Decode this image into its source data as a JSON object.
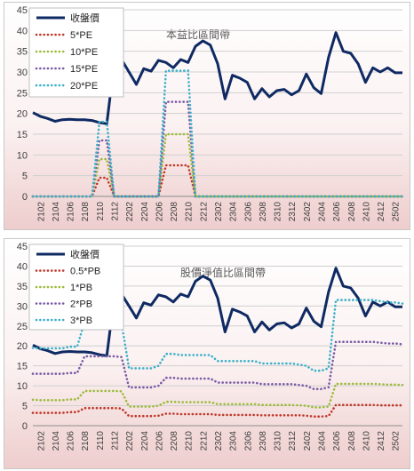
{
  "chart_data": [
    {
      "type": "line",
      "title": "本益比區間帶",
      "xlabel": "",
      "ylabel": "",
      "ylim": [
        0,
        45
      ],
      "yticks": [
        0,
        5,
        10,
        15,
        20,
        25,
        30,
        35,
        40,
        45
      ],
      "grid": true,
      "legend": "top-left",
      "x": [
        "2101",
        "2102",
        "2103",
        "2104",
        "2105",
        "2106",
        "2107",
        "2108",
        "2109",
        "2110",
        "2111",
        "2112",
        "2201",
        "2202",
        "2203",
        "2204",
        "2205",
        "2206",
        "2207",
        "2208",
        "2209",
        "2210",
        "2211",
        "2212",
        "2301",
        "2302",
        "2303",
        "2304",
        "2305",
        "2306",
        "2307",
        "2308",
        "2309",
        "2310",
        "2311",
        "2312",
        "2401",
        "2402",
        "2403",
        "2404",
        "2405",
        "2406",
        "2407",
        "2408",
        "2409",
        "2410",
        "2411",
        "2412",
        "2501",
        "2502",
        "2503"
      ],
      "x_tick_labels": [
        "2102",
        "2104",
        "2106",
        "2108",
        "2110",
        "2112",
        "2202",
        "2204",
        "2206",
        "2208",
        "2210",
        "2212",
        "2302",
        "2304",
        "2306",
        "2308",
        "2310",
        "2312",
        "2402",
        "2404",
        "2406",
        "2408",
        "2410",
        "2412",
        "2502"
      ],
      "series": [
        {
          "name": "收盤價",
          "color": "#0f2a63",
          "style": "solid",
          "values": [
            20.2,
            19.3,
            18.8,
            18.1,
            18.5,
            18.6,
            18.5,
            18.5,
            18.3,
            17.8,
            17.5,
            32.0,
            33.0,
            30.0,
            27.0,
            30.8,
            30.2,
            32.8,
            32.3,
            31.0,
            33.0,
            32.3,
            36.2,
            37.5,
            36.5,
            32.0,
            23.5,
            29.2,
            28.5,
            27.5,
            23.5,
            26.0,
            24.0,
            25.5,
            25.8,
            24.5,
            25.5,
            29.5,
            26.2,
            24.8,
            33.5,
            39.5,
            35.0,
            34.5,
            32.0,
            27.5,
            31.0,
            30.0,
            31.0,
            29.8,
            29.8
          ]
        },
        {
          "name": "5*PE",
          "color": "#c0392b",
          "style": "dotted",
          "values": [
            0,
            0,
            0,
            0,
            0,
            0,
            0,
            0,
            0,
            4.5,
            4.5,
            0,
            0,
            0,
            0,
            0,
            0,
            0,
            7.5,
            7.5,
            7.5,
            7.5,
            0,
            0,
            0,
            0,
            0,
            0,
            0,
            0,
            0,
            0,
            0,
            0,
            0,
            0,
            0,
            0,
            0,
            0,
            0,
            0,
            0,
            0,
            0,
            0,
            0,
            0,
            0,
            0,
            0
          ]
        },
        {
          "name": "10*PE",
          "color": "#9bbb3b",
          "style": "dotted",
          "values": [
            0,
            0,
            0,
            0,
            0,
            0,
            0,
            0,
            0,
            9.0,
            9.0,
            0,
            0,
            0,
            0,
            0,
            0,
            0,
            15.0,
            15.0,
            15.0,
            15.0,
            0,
            0,
            0,
            0,
            0,
            0,
            0,
            0,
            0,
            0,
            0,
            0,
            0,
            0,
            0,
            0,
            0,
            0,
            0,
            0,
            0,
            0,
            0,
            0,
            0,
            0,
            0,
            0,
            0
          ]
        },
        {
          "name": "15*PE",
          "color": "#7a5aa6",
          "style": "dotted",
          "values": [
            0,
            0,
            0,
            0,
            0,
            0,
            0,
            0,
            0,
            13.5,
            13.5,
            0,
            0,
            0,
            0,
            0,
            0,
            0,
            22.8,
            22.8,
            22.8,
            22.8,
            0,
            0,
            0,
            0,
            0,
            0,
            0,
            0,
            0,
            0,
            0,
            0,
            0,
            0,
            0,
            0,
            0,
            0,
            0,
            0,
            0,
            0,
            0,
            0,
            0,
            0,
            0,
            0,
            0
          ]
        },
        {
          "name": "20*PE",
          "color": "#3bb0c9",
          "style": "dotted",
          "values": [
            0,
            0,
            0,
            0,
            0,
            0,
            0,
            0,
            0,
            18.0,
            18.0,
            0,
            0,
            0,
            0,
            0,
            0,
            0,
            30.3,
            30.3,
            30.3,
            30.3,
            0,
            0,
            0,
            0,
            0,
            0,
            0,
            0,
            0,
            0,
            0,
            0,
            0,
            0,
            0,
            0,
            0,
            0,
            0,
            0,
            0,
            0,
            0,
            0,
            0,
            0,
            0,
            0,
            0
          ]
        }
      ]
    },
    {
      "type": "line",
      "title": "股價淨值比區間帶",
      "xlabel": "",
      "ylabel": "",
      "ylim": [
        0,
        45
      ],
      "yticks": [
        0,
        5,
        10,
        15,
        20,
        25,
        30,
        35,
        40,
        45
      ],
      "grid": true,
      "legend": "top-left",
      "x": [
        "2101",
        "2102",
        "2103",
        "2104",
        "2105",
        "2106",
        "2107",
        "2108",
        "2109",
        "2110",
        "2111",
        "2112",
        "2201",
        "2202",
        "2203",
        "2204",
        "2205",
        "2206",
        "2207",
        "2208",
        "2209",
        "2210",
        "2211",
        "2212",
        "2301",
        "2302",
        "2303",
        "2304",
        "2305",
        "2306",
        "2307",
        "2308",
        "2309",
        "2310",
        "2311",
        "2312",
        "2401",
        "2402",
        "2403",
        "2404",
        "2405",
        "2406",
        "2407",
        "2408",
        "2409",
        "2410",
        "2411",
        "2412",
        "2501",
        "2502",
        "2503"
      ],
      "x_tick_labels": [
        "2102",
        "2104",
        "2106",
        "2108",
        "2110",
        "2112",
        "2202",
        "2204",
        "2206",
        "2208",
        "2210",
        "2212",
        "2302",
        "2304",
        "2306",
        "2308",
        "2310",
        "2312",
        "2402",
        "2404",
        "2406",
        "2408",
        "2410",
        "2412",
        "2502"
      ],
      "series": [
        {
          "name": "收盤價",
          "color": "#0f2a63",
          "style": "solid",
          "values": [
            20.2,
            19.3,
            18.8,
            18.1,
            18.5,
            18.6,
            18.5,
            18.5,
            18.3,
            17.8,
            17.5,
            32.0,
            33.0,
            30.0,
            27.0,
            30.8,
            30.2,
            32.8,
            32.3,
            31.0,
            33.0,
            32.3,
            36.2,
            37.5,
            36.5,
            32.0,
            23.5,
            29.2,
            28.5,
            27.5,
            23.5,
            26.0,
            24.0,
            25.5,
            25.8,
            24.5,
            25.5,
            29.5,
            26.2,
            24.8,
            33.5,
            39.5,
            35.0,
            34.5,
            32.0,
            27.5,
            31.0,
            30.0,
            31.0,
            29.8,
            29.8
          ]
        },
        {
          "name": "0.5*PB",
          "color": "#c0392b",
          "style": "dotted",
          "values": [
            3.2,
            3.2,
            3.2,
            3.2,
            3.2,
            3.4,
            3.4,
            4.4,
            4.4,
            4.4,
            4.4,
            4.4,
            4.3,
            2.4,
            2.4,
            2.4,
            2.4,
            2.5,
            3.0,
            3.0,
            2.9,
            2.9,
            2.9,
            2.9,
            2.9,
            2.7,
            2.7,
            2.7,
            2.7,
            2.7,
            2.7,
            2.6,
            2.6,
            2.6,
            2.6,
            2.6,
            2.6,
            2.5,
            2.3,
            2.3,
            2.4,
            5.2,
            5.2,
            5.2,
            5.2,
            5.2,
            5.2,
            5.1,
            5.1,
            5.1,
            5.1
          ]
        },
        {
          "name": "1*PB",
          "color": "#9bbb3b",
          "style": "dotted",
          "values": [
            6.5,
            6.4,
            6.4,
            6.4,
            6.4,
            6.6,
            6.6,
            8.7,
            8.7,
            8.7,
            8.7,
            8.7,
            8.6,
            4.8,
            4.8,
            4.8,
            4.8,
            5.0,
            6.0,
            6.0,
            5.9,
            5.9,
            5.9,
            5.9,
            5.9,
            5.4,
            5.4,
            5.4,
            5.4,
            5.4,
            5.4,
            5.2,
            5.2,
            5.2,
            5.2,
            5.2,
            5.1,
            5.0,
            4.6,
            4.6,
            4.8,
            10.5,
            10.5,
            10.5,
            10.5,
            10.5,
            10.5,
            10.4,
            10.3,
            10.3,
            10.2
          ]
        },
        {
          "name": "2*PB",
          "color": "#7a5aa6",
          "style": "dotted",
          "values": [
            13.0,
            13.0,
            13.0,
            13.0,
            13.0,
            13.2,
            13.2,
            17.4,
            17.4,
            17.4,
            17.4,
            17.4,
            17.2,
            9.6,
            9.6,
            9.6,
            9.6,
            10.0,
            12.0,
            12.0,
            11.8,
            11.8,
            11.8,
            11.8,
            11.8,
            10.8,
            10.8,
            10.8,
            10.8,
            10.8,
            10.8,
            10.4,
            10.4,
            10.4,
            10.4,
            10.4,
            10.2,
            10.0,
            9.2,
            9.2,
            9.6,
            21.0,
            21.0,
            21.0,
            21.0,
            21.0,
            21.0,
            20.8,
            20.6,
            20.6,
            20.4
          ]
        },
        {
          "name": "3*PB",
          "color": "#3bb0c9",
          "style": "dotted",
          "values": [
            19.5,
            19.4,
            19.4,
            19.4,
            19.4,
            19.8,
            19.8,
            26.1,
            26.1,
            26.1,
            26.1,
            26.1,
            25.8,
            14.4,
            14.4,
            14.4,
            14.4,
            15.0,
            18.0,
            18.0,
            17.7,
            17.7,
            17.7,
            17.7,
            17.7,
            16.2,
            16.2,
            16.2,
            16.2,
            16.2,
            16.2,
            15.6,
            15.6,
            15.6,
            15.6,
            15.6,
            15.3,
            15.0,
            13.8,
            13.8,
            14.4,
            31.5,
            31.5,
            31.5,
            31.5,
            31.5,
            31.5,
            31.2,
            30.9,
            30.9,
            30.6
          ]
        }
      ]
    }
  ]
}
